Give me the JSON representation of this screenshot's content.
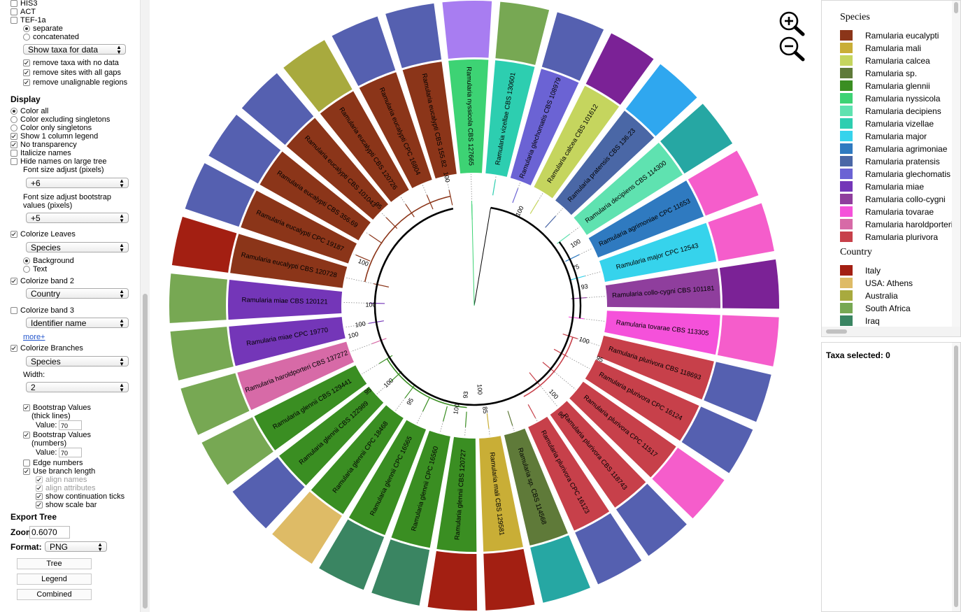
{
  "loci": {
    "his3": "HIS3",
    "act": "ACT",
    "tef": "TEF-1a",
    "separate": "separate",
    "concatenated": "concatenated",
    "show_taxa": "Show taxa for data",
    "remove_taxa": "remove taxa with no data",
    "remove_gaps": "remove sites with all gaps",
    "remove_unalign": "remove unalignable regions"
  },
  "display": {
    "title": "Display",
    "color_all": "Color all",
    "color_excl": "Color excluding singletons",
    "color_only": "Color only singletons",
    "show_legend": "Show 1 column legend",
    "no_transparency": "No transparency",
    "italicize": "Italicize names",
    "hide_names": "Hide names on large tree",
    "font_adj": "Font size adjust (pixels)",
    "font_adj_value": "+6",
    "font_boot_1": "Font size adjust bootstrap",
    "font_boot_2": "values (pixels)",
    "font_boot_value": "+5",
    "colorize_leaves": "Colorize Leaves",
    "leaves_value": "Species",
    "background": "Background",
    "text": "Text",
    "band2": "Colorize band 2",
    "band2_value": "Country",
    "band3": "Colorize band 3",
    "band3_value": "Identifier name",
    "more": "more+",
    "colorize_branches": "Colorize Branches",
    "branches_value": "Species",
    "width_label": "Width:",
    "width_value": "2",
    "boot_thick_1": "Bootstrap Values",
    "boot_thick_2": "(thick lines)",
    "value_label": "Value:",
    "boot_thick_value": "70",
    "boot_num_1": "Bootstrap Values",
    "boot_num_2": "(numbers)",
    "boot_num_value": "70",
    "edge_numbers": "Edge numbers",
    "branch_length": "Use branch length",
    "align_names": "align names",
    "align_attrs": "align attributes",
    "cont_ticks": "show continuation ticks",
    "scale_bar": "show scale bar"
  },
  "export": {
    "title": "Export Tree",
    "zoom_label": "Zoom",
    "zoom_value": "0.6070",
    "format_label": "Format:",
    "format_value": "PNG",
    "tree_btn": "Tree",
    "legend_btn": "Legend",
    "combined_btn": "Combined"
  },
  "legend": {
    "species_title": "Species",
    "species": [
      {
        "name": "Ramularia eucalypti",
        "color": "#8B3519"
      },
      {
        "name": "Ramularia mali",
        "color": "#C9AE36"
      },
      {
        "name": "Ramularia calcea",
        "color": "#C5D55E"
      },
      {
        "name": "Ramularia sp.",
        "color": "#5F7A39"
      },
      {
        "name": "Ramularia glennii",
        "color": "#3A8E22"
      },
      {
        "name": "Ramularia nyssicola",
        "color": "#3DD374"
      },
      {
        "name": "Ramularia decipiens",
        "color": "#5FE2B0"
      },
      {
        "name": "Ramularia vizellae",
        "color": "#2DCEB0"
      },
      {
        "name": "Ramularia major",
        "color": "#36D3EC"
      },
      {
        "name": "Ramularia agrimoniae",
        "color": "#2F7AC0"
      },
      {
        "name": "Ramularia pratensis",
        "color": "#4A67A6"
      },
      {
        "name": "Ramularia glechomatis",
        "color": "#6B63D4"
      },
      {
        "name": "Ramularia miae",
        "color": "#7436B8"
      },
      {
        "name": "Ramularia collo-cygni",
        "color": "#8F3E9D"
      },
      {
        "name": "Ramularia tovarae",
        "color": "#F551DA"
      },
      {
        "name": "Ramularia haroldporteri",
        "color": "#D76AA7"
      },
      {
        "name": "Ramularia plurivora",
        "color": "#C7404A"
      }
    ],
    "country_title": "Country",
    "country": [
      {
        "name": "Italy",
        "color": "#A31F12"
      },
      {
        "name": "USA: Athens",
        "color": "#DEBB66"
      },
      {
        "name": "Australia",
        "color": "#A8AA3E"
      },
      {
        "name": "South Africa",
        "color": "#77A853"
      },
      {
        "name": "Iraq",
        "color": "#3A8562"
      }
    ]
  },
  "taxa_selected": "Taxa selected: 0",
  "zoom_icons": {
    "in": "zoom-in-icon",
    "out": "zoom-out-icon"
  },
  "tree": {
    "leaves": [
      {
        "name": "Ramularia nyssicola CBS 127665",
        "species": "#3DD374",
        "band": "#A87DF1"
      },
      {
        "name": "Ramularia vizellae CBS 130601",
        "species": "#2DCEB0",
        "band": "#77A853"
      },
      {
        "name": "Ramularia glechomatis CBS 108979",
        "species": "#6B63D4",
        "band": "#5560B0"
      },
      {
        "name": "Ramularia calcea CBS 101612",
        "species": "#C5D55E",
        "band": "#7B2296"
      },
      {
        "name": "Ramularia pratensis CBS 136.23",
        "species": "#4A67A6",
        "band": "#2FA7EF"
      },
      {
        "name": "Ramularia decipiens CBS 114300",
        "species": "#5FE2B0",
        "band": "#26A7A3"
      },
      {
        "name": "Ramularia agrimoniae CPC 11653",
        "species": "#2F7AC0",
        "band": "#F55DCB"
      },
      {
        "name": "Ramularia major CPC 12543",
        "species": "#36D3EC",
        "band": "#F55DCB"
      },
      {
        "name": "Ramularia collo-cygni CBS 101181",
        "species": "#8F3E9D",
        "band": "#7B2296"
      },
      {
        "name": "Ramularia tovarae CBS 113305",
        "species": "#F551DA",
        "band": "#F55DCB"
      },
      {
        "name": "Ramularia plurivora CBS 118693",
        "species": "#C7404A",
        "band": "#5560B0"
      },
      {
        "name": "Ramularia plurivora CPC 16124",
        "species": "#C7404A",
        "band": "#5560B0"
      },
      {
        "name": "Ramularia plurivora CPC 11517",
        "species": "#C7404A",
        "band": "#F55DCB"
      },
      {
        "name": "Ramularia plurivora CBS 118743",
        "species": "#C7404A",
        "band": "#5560B0"
      },
      {
        "name": "Ramularia plurivora CPC 16123",
        "species": "#C7404A",
        "band": "#5560B0"
      },
      {
        "name": "Ramularia sp. CBS 114568",
        "species": "#5F7A39",
        "band": "#26A7A3"
      },
      {
        "name": "Ramularia mali CBS 129581",
        "species": "#C9AE36",
        "band": "#A31F12"
      },
      {
        "name": "Ramularia glennii CBS 120727",
        "species": "#3A8E22",
        "band": "#A31F12"
      },
      {
        "name": "Ramularia glennii CPC 16560",
        "species": "#3A8E22",
        "band": "#3A8562"
      },
      {
        "name": "Ramularia glennii CPC 16565",
        "species": "#3A8E22",
        "band": "#3A8562"
      },
      {
        "name": "Ramularia glennii CPC 18468",
        "species": "#3A8E22",
        "band": "#DEBB66"
      },
      {
        "name": "Ramularia glennii CBS 122989",
        "species": "#3A8E22",
        "band": "#5560B0"
      },
      {
        "name": "Ramularia glennii CBS 129441",
        "species": "#3A8E22",
        "band": "#77A853"
      },
      {
        "name": "Ramularia haroldporteri CBS 137272",
        "species": "#D76AA7",
        "band": "#77A853"
      },
      {
        "name": "Ramularia miae CPC 19770",
        "species": "#7436B8",
        "band": "#77A853"
      },
      {
        "name": "Ramularia miae CBS 120121",
        "species": "#7436B8",
        "band": "#77A853"
      },
      {
        "name": "Ramularia eucalypti CBS 120728",
        "species": "#8B3519",
        "band": "#A31F12"
      },
      {
        "name": "Ramularia eucalypti CPC 19187",
        "species": "#8B3519",
        "band": "#5560B0"
      },
      {
        "name": "Ramularia eucalypti CBS 356.69",
        "species": "#8B3519",
        "band": "#5560B0"
      },
      {
        "name": "Ramularia eucalypti CBS 101043",
        "species": "#8B3519",
        "band": "#5560B0"
      },
      {
        "name": "Ramularia eucalypti CBS 120726",
        "species": "#8B3519",
        "band": "#A8AA3E"
      },
      {
        "name": "Ramularia eucalypti CPC 16804",
        "species": "#8B3519",
        "band": "#5560B0"
      },
      {
        "name": "Ramularia eucalypti CBS 155.82",
        "species": "#8B3519",
        "band": "#5560B0"
      }
    ],
    "bootstrap": [
      {
        "label": "100",
        "leaf": 32.5,
        "r": 188
      },
      {
        "label": "95",
        "leaf": 29.6,
        "r": 198
      },
      {
        "label": "100",
        "leaf": 27.3,
        "r": 170
      },
      {
        "label": "100",
        "leaf": 25.4,
        "r": 148
      },
      {
        "label": "100",
        "leaf": 24.5,
        "r": 165
      },
      {
        "label": "100",
        "leaf": 24.1,
        "r": 178
      },
      {
        "label": "100",
        "leaf": 21.5,
        "r": 165
      },
      {
        "label": "95",
        "leaf": 20.2,
        "r": 165
      },
      {
        "label": "95",
        "leaf": 21.8,
        "r": 195
      },
      {
        "label": "100",
        "leaf": 18.0,
        "r": 150
      },
      {
        "label": "93",
        "leaf": 17.6,
        "r": 128
      },
      {
        "label": "100",
        "leaf": 16.8,
        "r": 120
      },
      {
        "label": "85",
        "leaf": 16.6,
        "r": 150
      },
      {
        "label": "100",
        "leaf": 13.3,
        "r": 170
      },
      {
        "label": "96",
        "leaf": 13.6,
        "r": 200
      },
      {
        "label": "95",
        "leaf": 11.0,
        "r": 195
      },
      {
        "label": "100",
        "leaf": 10.5,
        "r": 165
      },
      {
        "label": "93",
        "leaf": 8.0,
        "r": 160
      },
      {
        "label": "75",
        "leaf": 7.0,
        "r": 155
      },
      {
        "label": "100",
        "leaf": 6.0,
        "r": 170
      },
      {
        "label": "100",
        "leaf": 3.0,
        "r": 150
      }
    ]
  }
}
